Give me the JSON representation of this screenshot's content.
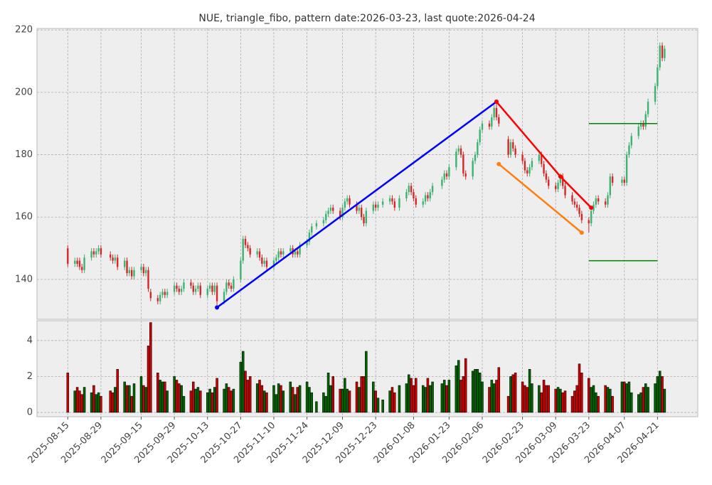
{
  "chart_data": {
    "type": "candlestick",
    "title": "NUE, triangle_fibo, pattern date:2026-03-23, last quote:2026-04-24",
    "x": [
      "2025-08-15",
      "2025-08-18",
      "2025-08-19",
      "2025-08-20",
      "2025-08-21",
      "2025-08-22",
      "2025-08-25",
      "2025-08-26",
      "2025-08-27",
      "2025-08-28",
      "2025-08-29",
      "2025-09-02",
      "2025-09-03",
      "2025-09-04",
      "2025-09-05",
      "2025-09-08",
      "2025-09-09",
      "2025-09-10",
      "2025-09-11",
      "2025-09-12",
      "2025-09-15",
      "2025-09-16",
      "2025-09-17",
      "2025-09-18",
      "2025-09-19",
      "2025-09-22",
      "2025-09-23",
      "2025-09-24",
      "2025-09-25",
      "2025-09-26",
      "2025-09-29",
      "2025-09-30",
      "2025-10-01",
      "2025-10-02",
      "2025-10-03",
      "2025-10-06",
      "2025-10-07",
      "2025-10-08",
      "2025-10-09",
      "2025-10-10",
      "2025-10-13",
      "2025-10-14",
      "2025-10-15",
      "2025-10-16",
      "2025-10-17",
      "2025-10-20",
      "2025-10-21",
      "2025-10-22",
      "2025-10-23",
      "2025-10-24",
      "2025-10-27",
      "2025-10-28",
      "2025-10-29",
      "2025-10-30",
      "2025-10-31",
      "2025-11-03",
      "2025-11-04",
      "2025-11-05",
      "2025-11-06",
      "2025-11-07",
      "2025-11-10",
      "2025-11-11",
      "2025-11-12",
      "2025-11-13",
      "2025-11-14",
      "2025-11-17",
      "2025-11-18",
      "2025-11-19",
      "2025-11-20",
      "2025-11-21",
      "2025-11-24",
      "2025-11-25",
      "2025-11-26",
      "2025-11-28",
      "2025-12-01",
      "2025-12-02",
      "2025-12-03",
      "2025-12-04",
      "2025-12-05",
      "2025-12-08",
      "2025-12-09",
      "2025-12-10",
      "2025-12-11",
      "2025-12-12",
      "2025-12-15",
      "2025-12-16",
      "2025-12-17",
      "2025-12-18",
      "2025-12-19",
      "2025-12-22",
      "2025-12-23",
      "2025-12-24",
      "2025-12-26",
      "2025-12-29",
      "2025-12-30",
      "2025-12-31",
      "2026-01-02",
      "2026-01-05",
      "2026-01-06",
      "2026-01-07",
      "2026-01-08",
      "2026-01-09",
      "2026-01-12",
      "2026-01-13",
      "2026-01-14",
      "2026-01-15",
      "2026-01-16",
      "2026-01-20",
      "2026-01-21",
      "2026-01-22",
      "2026-01-23",
      "2026-01-26",
      "2026-01-27",
      "2026-01-28",
      "2026-01-29",
      "2026-01-30",
      "2026-02-02",
      "2026-02-03",
      "2026-02-04",
      "2026-02-05",
      "2026-02-06",
      "2026-02-09",
      "2026-02-10",
      "2026-02-11",
      "2026-02-12",
      "2026-02-13",
      "2026-02-17",
      "2026-02-18",
      "2026-02-19",
      "2026-02-20",
      "2026-02-23",
      "2026-02-24",
      "2026-02-25",
      "2026-02-26",
      "2026-02-27",
      "2026-03-02",
      "2026-03-03",
      "2026-03-04",
      "2026-03-05",
      "2026-03-06",
      "2026-03-09",
      "2026-03-10",
      "2026-03-11",
      "2026-03-12",
      "2026-03-13",
      "2026-03-16",
      "2026-03-17",
      "2026-03-18",
      "2026-03-19",
      "2026-03-20",
      "2026-03-23",
      "2026-03-24",
      "2026-03-25",
      "2026-03-26",
      "2026-03-27",
      "2026-03-30",
      "2026-03-31",
      "2026-04-01",
      "2026-04-02",
      "2026-04-06",
      "2026-04-07",
      "2026-04-08",
      "2026-04-09",
      "2026-04-10",
      "2026-04-13",
      "2026-04-14",
      "2026-04-15",
      "2026-04-16",
      "2026-04-17",
      "2026-04-20",
      "2026-04-21",
      "2026-04-22",
      "2026-04-23",
      "2026-04-24"
    ],
    "open": [
      150,
      145,
      146,
      146,
      144,
      143,
      147,
      149,
      148,
      149,
      150,
      148,
      147,
      146,
      147,
      144,
      146,
      142,
      143,
      141,
      143,
      144,
      142,
      143,
      136,
      134,
      133,
      135,
      136,
      135,
      136,
      138,
      137,
      136,
      137,
      139,
      138,
      136,
      137,
      138,
      135,
      137,
      138,
      136,
      138,
      133,
      136,
      139,
      138,
      137,
      140,
      146,
      153,
      151,
      150,
      148,
      149,
      147,
      145,
      146,
      144,
      146,
      147,
      149,
      148,
      149,
      150,
      148,
      149,
      148,
      151,
      152,
      155,
      157,
      158,
      159,
      161,
      162,
      163,
      162,
      160,
      163,
      165,
      166,
      164,
      162,
      163,
      160,
      158,
      162,
      164,
      163,
      164,
      165,
      166,
      165,
      163,
      166,
      168,
      170,
      168,
      166,
      164,
      165,
      167,
      166,
      168,
      170,
      172,
      174,
      173,
      176,
      181,
      182,
      180,
      174,
      173,
      178,
      180,
      184,
      188,
      190,
      189,
      192,
      195,
      192,
      185,
      180,
      184,
      182,
      180,
      178,
      175,
      174,
      176,
      178,
      180,
      177,
      174,
      172,
      170,
      169,
      171,
      173,
      170,
      167,
      165,
      164,
      163,
      161,
      159,
      158,
      162,
      164,
      166,
      165,
      164,
      167,
      173,
      171,
      172,
      171,
      180,
      183,
      186,
      189,
      190,
      189,
      193,
      197,
      202,
      208,
      215,
      211
    ],
    "high": [
      151,
      147,
      147,
      147,
      145,
      148,
      150,
      150,
      150,
      151,
      151,
      149,
      148,
      148,
      148,
      147,
      147,
      144,
      144,
      144,
      145,
      145,
      144,
      144,
      137,
      135,
      136,
      137,
      137,
      137,
      139,
      139,
      138,
      138,
      140,
      140,
      139,
      138,
      139,
      139,
      138,
      139,
      139,
      139,
      139,
      137,
      140,
      140,
      139,
      141,
      147,
      154,
      154,
      152,
      151,
      150,
      150,
      148,
      147,
      147,
      147,
      148,
      150,
      150,
      150,
      151,
      151,
      150,
      150,
      152,
      153,
      156,
      158,
      159,
      160,
      162,
      163,
      164,
      164,
      163,
      164,
      166,
      167,
      167,
      165,
      164,
      164,
      161,
      163,
      165,
      165,
      165,
      166,
      167,
      167,
      166,
      167,
      169,
      171,
      171,
      169,
      167,
      166,
      168,
      168,
      169,
      171,
      173,
      175,
      175,
      177,
      182,
      183,
      183,
      181,
      175,
      179,
      181,
      185,
      189,
      191,
      191,
      193,
      196,
      197,
      193,
      186,
      185,
      185,
      183,
      181,
      179,
      176,
      177,
      179,
      181,
      181,
      178,
      175,
      173,
      171,
      172,
      174,
      174,
      171,
      168,
      166,
      165,
      164,
      162,
      160,
      163,
      165,
      167,
      167,
      166,
      168,
      174,
      174,
      173,
      173,
      181,
      184,
      187,
      190,
      191,
      191,
      194,
      198,
      203,
      209,
      216,
      216,
      215
    ],
    "low": [
      144,
      144,
      144,
      143,
      142,
      142,
      146,
      147,
      147,
      148,
      147,
      146,
      145,
      145,
      143,
      143,
      141,
      141,
      140,
      140,
      142,
      141,
      141,
      136,
      133,
      132,
      132,
      134,
      134,
      134,
      135,
      136,
      135,
      135,
      136,
      137,
      135,
      135,
      136,
      134,
      134,
      136,
      135,
      135,
      131,
      132,
      135,
      137,
      136,
      136,
      139,
      145,
      150,
      149,
      147,
      147,
      146,
      144,
      144,
      143,
      143,
      145,
      146,
      147,
      147,
      148,
      147,
      147,
      147,
      147,
      150,
      151,
      154,
      156,
      157,
      158,
      160,
      161,
      161,
      159,
      159,
      162,
      164,
      163,
      161,
      161,
      159,
      157,
      157,
      161,
      162,
      162,
      163,
      164,
      164,
      162,
      162,
      165,
      167,
      167,
      165,
      163,
      163,
      164,
      165,
      165,
      167,
      169,
      171,
      172,
      172,
      175,
      180,
      179,
      173,
      172,
      172,
      177,
      179,
      183,
      187,
      188,
      188,
      191,
      191,
      189,
      179,
      179,
      181,
      179,
      177,
      174,
      173,
      173,
      175,
      177,
      176,
      173,
      171,
      169,
      168,
      168,
      170,
      169,
      166,
      164,
      163,
      162,
      160,
      158,
      155,
      157,
      161,
      163,
      164,
      163,
      163,
      166,
      170,
      170,
      170,
      170,
      179,
      182,
      185,
      188,
      188,
      188,
      192,
      196,
      201,
      207,
      210,
      210
    ],
    "close": [
      145,
      146,
      145,
      144,
      143,
      147,
      149,
      148,
      149,
      150,
      148,
      147,
      146,
      147,
      144,
      146,
      142,
      143,
      141,
      143,
      144,
      142,
      143,
      137,
      134,
      133,
      135,
      136,
      135,
      136,
      138,
      137,
      136,
      137,
      139,
      138,
      136,
      137,
      138,
      135,
      137,
      138,
      136,
      138,
      133,
      136,
      139,
      138,
      137,
      140,
      146,
      153,
      151,
      150,
      148,
      149,
      147,
      145,
      146,
      144,
      146,
      147,
      149,
      148,
      149,
      150,
      148,
      149,
      148,
      151,
      152,
      155,
      157,
      158,
      159,
      161,
      162,
      163,
      162,
      160,
      163,
      165,
      166,
      164,
      162,
      163,
      160,
      158,
      162,
      164,
      163,
      164,
      165,
      166,
      165,
      163,
      166,
      168,
      170,
      168,
      166,
      164,
      165,
      167,
      166,
      168,
      170,
      172,
      174,
      173,
      176,
      181,
      182,
      180,
      174,
      173,
      178,
      180,
      184,
      188,
      190,
      189,
      192,
      195,
      192,
      190,
      180,
      184,
      182,
      180,
      178,
      175,
      174,
      176,
      178,
      180,
      177,
      174,
      172,
      170,
      169,
      171,
      173,
      170,
      167,
      165,
      164,
      163,
      161,
      159,
      158,
      162,
      164,
      166,
      165,
      164,
      167,
      173,
      171,
      172,
      171,
      180,
      183,
      186,
      189,
      190,
      189,
      193,
      197,
      202,
      208,
      215,
      211,
      214
    ],
    "volume": [
      2.2,
      1.2,
      1.4,
      1.2,
      1.0,
      1.4,
      1.1,
      1.5,
      1.0,
      1.1,
      0.9,
      1.2,
      1.1,
      1.4,
      2.4,
      1.7,
      1.5,
      1.5,
      0.9,
      1.6,
      2.0,
      1.5,
      1.4,
      3.7,
      5.0,
      2.2,
      1.8,
      1.7,
      1.7,
      1.2,
      2.0,
      1.8,
      1.6,
      1.5,
      0.9,
      1.2,
      1.7,
      1.3,
      1.4,
      1.2,
      1.1,
      1.3,
      1.1,
      1.4,
      1.9,
      1.3,
      1.6,
      1.4,
      1.2,
      1.3,
      2.8,
      3.4,
      2.3,
      1.8,
      2.0,
      1.6,
      1.8,
      1.5,
      1.2,
      1.1,
      1.5,
      1.0,
      1.6,
      1.5,
      1.2,
      1.7,
      1.4,
      1.0,
      1.4,
      1.5,
      1.7,
      1.4,
      1.1,
      0.6,
      1.1,
      0.9,
      2.2,
      1.5,
      2.0,
      1.3,
      1.3,
      1.9,
      1.3,
      1.2,
      1.7,
      1.4,
      2.0,
      2.0,
      3.4,
      1.7,
      1.2,
      0.8,
      0.7,
      1.2,
      1.4,
      1.1,
      1.5,
      1.6,
      2.1,
      1.9,
      1.5,
      1.9,
      1.5,
      1.4,
      1.9,
      1.5,
      1.7,
      1.6,
      1.8,
      1.5,
      1.8,
      2.6,
      2.9,
      1.8,
      2.0,
      3.0,
      2.3,
      2.4,
      2.4,
      2.2,
      1.7,
      1.4,
      1.8,
      1.6,
      1.8,
      2.5,
      0.9,
      2.0,
      2.1,
      2.2,
      1.7,
      1.5,
      1.4,
      2.4,
      1.6,
      1.5,
      1.1,
      1.8,
      1.5,
      1.5,
      1.3,
      1.4,
      1.3,
      1.1,
      1.2,
      0.9,
      1.2,
      1.5,
      2.7,
      2.2,
      1.9,
      1.4,
      1.5,
      1.1,
      0.9,
      1.5,
      1.4,
      1.3,
      0.9,
      1.7,
      1.7,
      1.6,
      1.7,
      1.1,
      1.0,
      1.1,
      1.4,
      1.6,
      1.4,
      1.6,
      2.0,
      2.3,
      2.0,
      1.3
    ],
    "up_color": "#3cb371",
    "down_color": "#d62728",
    "volume_up_color": "#006400",
    "volume_down_color": "#cc0000",
    "xlim": [
      "2025-08-02",
      "2026-05-08"
    ],
    "xticks": [
      "2025-08-15",
      "2025-08-29",
      "2025-09-15",
      "2025-09-29",
      "2025-10-13",
      "2025-10-27",
      "2025-11-10",
      "2025-11-24",
      "2025-12-09",
      "2025-12-23",
      "2026-01-08",
      "2026-01-23",
      "2026-02-06",
      "2026-02-23",
      "2026-03-09",
      "2026-03-23",
      "2026-04-07",
      "2026-04-21"
    ],
    "ylim": [
      127.2,
      220.5
    ],
    "yticks": [
      140,
      160,
      180,
      200,
      220
    ],
    "volume_ylim": [
      -0.24,
      5.1
    ],
    "volume_yticks": [
      0,
      2,
      4
    ],
    "grid": true,
    "pattern_lines": [
      {
        "color": "#0000ff",
        "markers": true,
        "x": [
          "2025-10-17",
          "2026-02-12"
        ],
        "y": [
          131,
          197
        ]
      },
      {
        "color": "#ff0000",
        "markers": true,
        "x": [
          "2026-02-12",
          "2026-03-11",
          "2026-03-24"
        ],
        "y": [
          197,
          173,
          163
        ]
      },
      {
        "color": "#ff7f0e",
        "markers": true,
        "x": [
          "2026-02-13",
          "2026-03-20"
        ],
        "y": [
          177,
          155
        ]
      },
      {
        "color": "#008000",
        "markers": false,
        "x": [
          "2026-03-23",
          "2026-04-21"
        ],
        "y": [
          190,
          190
        ]
      },
      {
        "color": "#008000",
        "markers": false,
        "x": [
          "2026-03-23",
          "2026-04-21"
        ],
        "y": [
          146,
          146
        ]
      }
    ]
  }
}
